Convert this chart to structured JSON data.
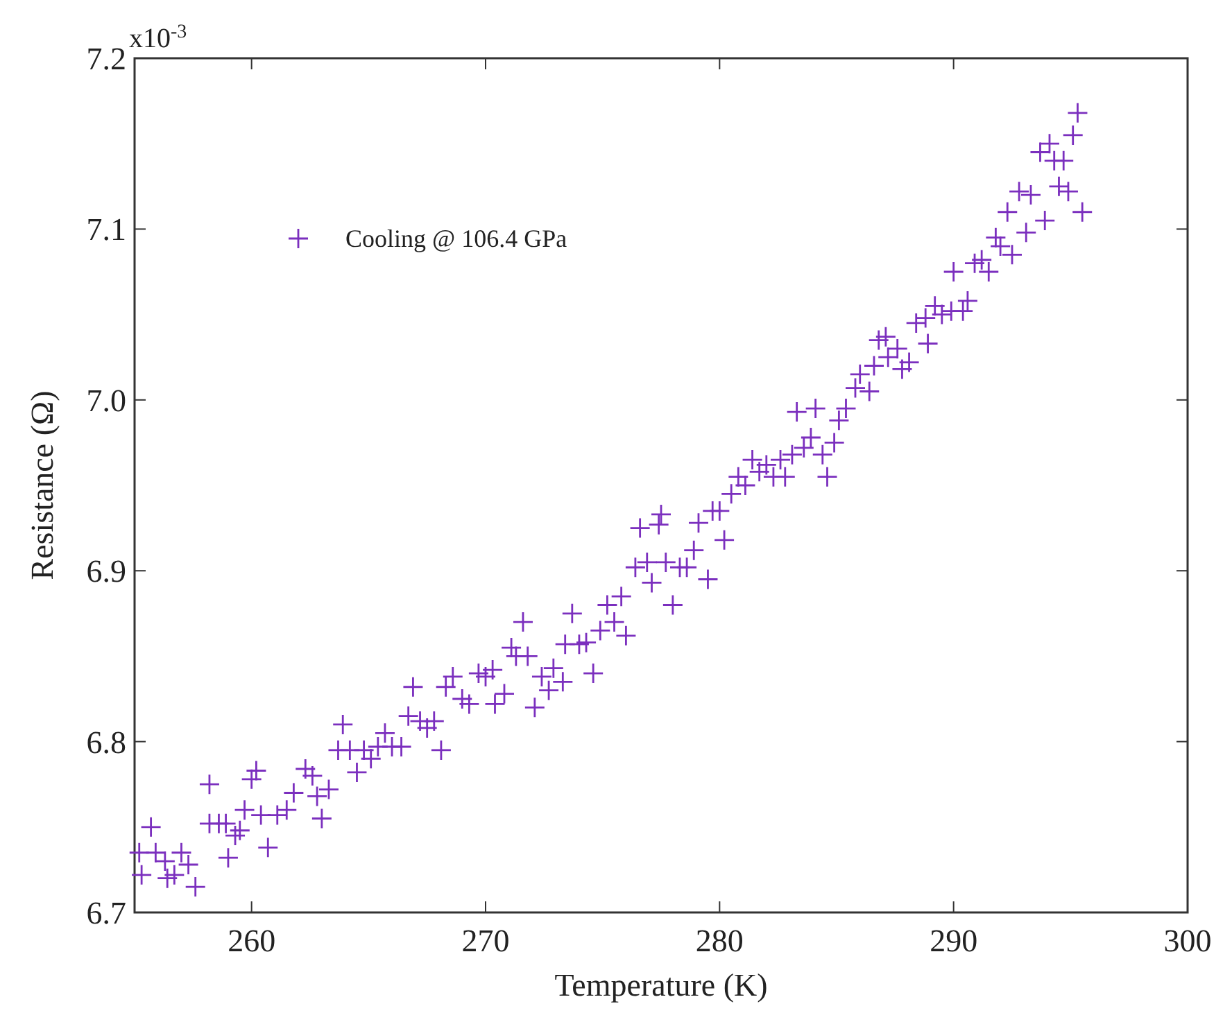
{
  "chart_data": {
    "type": "scatter",
    "xlabel": "Temperature (K)",
    "ylabel": "Resistance (Ω)",
    "xlim": [
      255,
      300
    ],
    "ylim": [
      6.7,
      7.2
    ],
    "xticks": [
      260,
      270,
      280,
      290,
      300
    ],
    "yticks": [
      6.7,
      6.8,
      6.9,
      {
        "value": 7.0,
        "label": "7.0"
      },
      7.1,
      7.2
    ],
    "annotations": [
      "x10$^{-3}$"
    ],
    "grid": false,
    "legend": "top left",
    "marker": "cross",
    "series": [
      {
        "name": "Cooling @ 106.4 GPa",
        "color": "#7b2fbe",
        "x": [
          255.2,
          255.3,
          255.7,
          255.9,
          256.3,
          256.4,
          256.7,
          257.0,
          257.3,
          257.6,
          258.2,
          258.2,
          258.6,
          258.9,
          259.0,
          259.3,
          259.5,
          259.7,
          260.0,
          260.2,
          260.4,
          260.7,
          261.1,
          261.5,
          261.8,
          262.3,
          262.6,
          262.8,
          263.0,
          263.3,
          263.7,
          263.9,
          264.2,
          264.5,
          264.8,
          265.1,
          265.4,
          265.7,
          266.0,
          266.4,
          266.7,
          266.9,
          267.2,
          267.5,
          267.8,
          268.1,
          268.3,
          268.6,
          269.0,
          269.3,
          269.7,
          270.0,
          270.3,
          270.4,
          270.8,
          271.1,
          271.3,
          271.6,
          271.8,
          272.1,
          272.4,
          272.7,
          272.9,
          273.3,
          273.4,
          273.7,
          274.0,
          274.3,
          274.6,
          274.9,
          275.2,
          275.5,
          275.8,
          276.0,
          276.4,
          276.6,
          276.9,
          277.1,
          277.4,
          277.5,
          277.7,
          278.0,
          278.3,
          278.6,
          278.9,
          279.1,
          279.5,
          279.7,
          280.0,
          280.2,
          280.5,
          280.8,
          281.1,
          281.4,
          281.7,
          282.0,
          282.3,
          282.6,
          282.8,
          283.1,
          283.3,
          283.6,
          283.9,
          284.1,
          284.4,
          284.6,
          284.9,
          285.1,
          285.4,
          285.8,
          286.0,
          286.4,
          286.6,
          286.8,
          287.1,
          287.2,
          287.6,
          287.8,
          288.1,
          288.4,
          288.8,
          288.9,
          289.2,
          289.5,
          289.9,
          290.0,
          290.4,
          290.6,
          290.9,
          291.2,
          291.5,
          291.8,
          292.0,
          292.3,
          292.5,
          292.8,
          293.1,
          293.3,
          293.7,
          293.9,
          294.1,
          294.3,
          294.5,
          294.7,
          294.9,
          295.1,
          295.3,
          295.5
        ],
        "values": [
          6.735,
          6.722,
          6.75,
          6.735,
          6.73,
          6.72,
          6.722,
          6.735,
          6.728,
          6.715,
          6.752,
          6.775,
          6.752,
          6.752,
          6.732,
          6.745,
          6.748,
          6.76,
          6.778,
          6.783,
          6.757,
          6.738,
          6.757,
          6.76,
          6.77,
          6.784,
          6.78,
          6.768,
          6.755,
          6.772,
          6.795,
          6.81,
          6.795,
          6.782,
          6.795,
          6.79,
          6.797,
          6.805,
          6.797,
          6.797,
          6.815,
          6.832,
          6.812,
          6.808,
          6.812,
          6.795,
          6.832,
          6.838,
          6.825,
          6.822,
          6.84,
          6.838,
          6.842,
          6.822,
          6.828,
          6.855,
          6.85,
          6.87,
          6.85,
          6.82,
          6.838,
          6.83,
          6.843,
          6.835,
          6.857,
          6.875,
          6.857,
          6.858,
          6.84,
          6.865,
          6.88,
          6.87,
          6.885,
          6.862,
          6.902,
          6.925,
          6.905,
          6.893,
          6.927,
          6.933,
          6.905,
          6.88,
          6.902,
          6.902,
          6.912,
          6.928,
          6.895,
          6.935,
          6.935,
          6.918,
          6.945,
          6.955,
          6.95,
          6.965,
          6.958,
          6.962,
          6.955,
          6.965,
          6.955,
          6.968,
          6.993,
          6.972,
          6.978,
          6.995,
          6.968,
          6.955,
          6.975,
          6.988,
          6.995,
          7.007,
          7.015,
          7.005,
          7.02,
          7.035,
          7.037,
          7.025,
          7.03,
          7.018,
          7.022,
          7.045,
          7.048,
          7.033,
          7.055,
          7.05,
          7.052,
          7.075,
          7.052,
          7.058,
          7.08,
          7.082,
          7.075,
          7.095,
          7.09,
          7.11,
          7.085,
          7.122,
          7.098,
          7.12,
          7.145,
          7.105,
          7.15,
          7.14,
          7.125,
          7.14,
          7.122,
          7.155,
          7.168,
          7.11
        ]
      }
    ]
  }
}
